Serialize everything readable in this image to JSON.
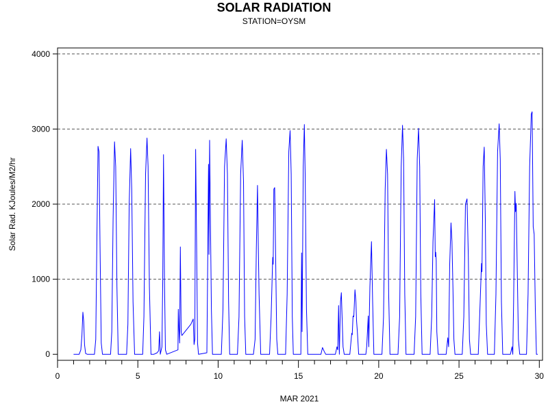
{
  "chart_data": {
    "type": "line",
    "title": "SOLAR RADIATION",
    "subtitle": "STATION=OYSM",
    "xlabel": "MAR 2021",
    "ylabel": "Solar Rad. KJoules/M2/hr",
    "xlim": [
      0,
      30.2
    ],
    "ylim": [
      -80,
      4080
    ],
    "x_ticks": [
      0,
      5,
      10,
      15,
      20,
      25,
      30
    ],
    "y_ticks": [
      0,
      1000,
      2000,
      3000,
      4000
    ],
    "grid": "horizontal dashed",
    "line_color": "#0000ff",
    "series": [
      {
        "points": [
          [
            1.0,
            0
          ],
          [
            1.35,
            0
          ],
          [
            1.45,
            60
          ],
          [
            1.52,
            250
          ],
          [
            1.58,
            560
          ],
          [
            1.63,
            440
          ],
          [
            1.68,
            130
          ],
          [
            1.75,
            10
          ],
          [
            1.85,
            0
          ],
          [
            2.3,
            0
          ],
          [
            2.38,
            200
          ],
          [
            2.45,
            1500
          ],
          [
            2.52,
            2770
          ],
          [
            2.58,
            2700
          ],
          [
            2.65,
            1400
          ],
          [
            2.72,
            150
          ],
          [
            2.8,
            0
          ],
          [
            3.3,
            0
          ],
          [
            3.38,
            300
          ],
          [
            3.46,
            1800
          ],
          [
            3.55,
            2830
          ],
          [
            3.62,
            2500
          ],
          [
            3.7,
            900
          ],
          [
            3.78,
            0
          ],
          [
            4.3,
            0
          ],
          [
            4.38,
            400
          ],
          [
            4.46,
            2000
          ],
          [
            4.55,
            2740
          ],
          [
            4.62,
            2200
          ],
          [
            4.7,
            700
          ],
          [
            4.8,
            0
          ],
          [
            5.3,
            0
          ],
          [
            5.38,
            500
          ],
          [
            5.48,
            2400
          ],
          [
            5.57,
            2880
          ],
          [
            5.64,
            2500
          ],
          [
            5.72,
            900
          ],
          [
            5.82,
            0
          ],
          [
            6.0,
            0
          ],
          [
            6.2,
            20
          ],
          [
            6.3,
            50
          ],
          [
            6.35,
            300
          ],
          [
            6.4,
            0
          ],
          [
            6.5,
            100
          ],
          [
            6.55,
            1000
          ],
          [
            6.6,
            2660
          ],
          [
            6.66,
            1000
          ],
          [
            6.72,
            60
          ],
          [
            6.8,
            0
          ],
          [
            7.5,
            60
          ],
          [
            7.52,
            600
          ],
          [
            7.56,
            350
          ],
          [
            7.6,
            150
          ],
          [
            7.65,
            1430
          ],
          [
            7.7,
            300
          ],
          [
            7.74,
            250
          ],
          [
            8.3,
            400
          ],
          [
            8.45,
            470
          ],
          [
            8.5,
            130
          ],
          [
            8.55,
            200
          ],
          [
            8.6,
            2730
          ],
          [
            8.66,
            1500
          ],
          [
            8.72,
            150
          ],
          [
            8.78,
            0
          ],
          [
            9.3,
            20
          ],
          [
            9.35,
            1200
          ],
          [
            9.4,
            2530
          ],
          [
            9.43,
            1330
          ],
          [
            9.47,
            2850
          ],
          [
            9.52,
            1800
          ],
          [
            9.58,
            600
          ],
          [
            9.65,
            0
          ],
          [
            10.2,
            0
          ],
          [
            10.3,
            600
          ],
          [
            10.4,
            2500
          ],
          [
            10.5,
            2870
          ],
          [
            10.58,
            2400
          ],
          [
            10.65,
            700
          ],
          [
            10.72,
            0
          ],
          [
            11.2,
            0
          ],
          [
            11.3,
            500
          ],
          [
            11.4,
            2400
          ],
          [
            11.5,
            2850
          ],
          [
            11.58,
            2300
          ],
          [
            11.65,
            500
          ],
          [
            11.72,
            0
          ],
          [
            12.2,
            0
          ],
          [
            12.3,
            200
          ],
          [
            12.38,
            1400
          ],
          [
            12.45,
            2250
          ],
          [
            12.5,
            1500
          ],
          [
            12.55,
            800
          ],
          [
            12.6,
            400
          ],
          [
            12.65,
            0
          ],
          [
            13.2,
            0
          ],
          [
            13.3,
            500
          ],
          [
            13.4,
            1290
          ],
          [
            13.43,
            1200
          ],
          [
            13.47,
            2200
          ],
          [
            13.52,
            2220
          ],
          [
            13.58,
            1300
          ],
          [
            13.65,
            200
          ],
          [
            13.72,
            0
          ],
          [
            14.2,
            0
          ],
          [
            14.3,
            800
          ],
          [
            14.4,
            2700
          ],
          [
            14.48,
            2980
          ],
          [
            14.55,
            2400
          ],
          [
            14.62,
            500
          ],
          [
            14.68,
            0
          ],
          [
            15.15,
            0
          ],
          [
            15.2,
            1350
          ],
          [
            15.23,
            300
          ],
          [
            15.3,
            2500
          ],
          [
            15.37,
            3060
          ],
          [
            15.42,
            2400
          ],
          [
            15.5,
            600
          ],
          [
            15.58,
            0
          ],
          [
            16.4,
            0
          ],
          [
            16.5,
            90
          ],
          [
            16.6,
            40
          ],
          [
            16.7,
            0
          ],
          [
            17.3,
            0
          ],
          [
            17.4,
            100
          ],
          [
            17.45,
            60
          ],
          [
            17.5,
            650
          ],
          [
            17.55,
            0
          ],
          [
            17.62,
            700
          ],
          [
            17.67,
            820
          ],
          [
            17.72,
            500
          ],
          [
            17.78,
            100
          ],
          [
            17.85,
            0
          ],
          [
            18.2,
            0
          ],
          [
            18.32,
            280
          ],
          [
            18.35,
            260
          ],
          [
            18.4,
            510
          ],
          [
            18.45,
            500
          ],
          [
            18.52,
            860
          ],
          [
            18.58,
            700
          ],
          [
            18.62,
            450
          ],
          [
            18.67,
            300
          ],
          [
            18.75,
            0
          ],
          [
            19.2,
            0
          ],
          [
            19.25,
            100
          ],
          [
            19.35,
            510
          ],
          [
            19.38,
            100
          ],
          [
            19.45,
            900
          ],
          [
            19.55,
            1500
          ],
          [
            19.62,
            700
          ],
          [
            19.7,
            0
          ],
          [
            20.2,
            0
          ],
          [
            20.3,
            500
          ],
          [
            20.4,
            2200
          ],
          [
            20.48,
            2730
          ],
          [
            20.55,
            2400
          ],
          [
            20.62,
            800
          ],
          [
            20.7,
            0
          ],
          [
            21.2,
            0
          ],
          [
            21.3,
            500
          ],
          [
            21.4,
            2500
          ],
          [
            21.48,
            3050
          ],
          [
            21.55,
            2600
          ],
          [
            21.62,
            800
          ],
          [
            21.7,
            0
          ],
          [
            22.2,
            0
          ],
          [
            22.3,
            500
          ],
          [
            22.4,
            2600
          ],
          [
            22.48,
            3010
          ],
          [
            22.55,
            2500
          ],
          [
            22.62,
            800
          ],
          [
            22.7,
            0
          ],
          [
            23.2,
            0
          ],
          [
            23.3,
            500
          ],
          [
            23.38,
            1500
          ],
          [
            23.48,
            2060
          ],
          [
            23.52,
            1300
          ],
          [
            23.55,
            1360
          ],
          [
            23.58,
            1250
          ],
          [
            23.62,
            300
          ],
          [
            23.7,
            0
          ],
          [
            24.2,
            0
          ],
          [
            24.3,
            220
          ],
          [
            24.35,
            100
          ],
          [
            24.42,
            1200
          ],
          [
            24.5,
            1750
          ],
          [
            24.56,
            1500
          ],
          [
            24.62,
            900
          ],
          [
            24.68,
            200
          ],
          [
            24.75,
            0
          ],
          [
            25.2,
            0
          ],
          [
            25.3,
            500
          ],
          [
            25.4,
            2000
          ],
          [
            25.5,
            2070
          ],
          [
            25.58,
            1300
          ],
          [
            25.65,
            200
          ],
          [
            25.72,
            0
          ],
          [
            26.2,
            0
          ],
          [
            26.3,
            600
          ],
          [
            26.4,
            1210
          ],
          [
            26.43,
            1100
          ],
          [
            26.5,
            2500
          ],
          [
            26.57,
            2760
          ],
          [
            26.64,
            1800
          ],
          [
            26.7,
            400
          ],
          [
            26.78,
            0
          ],
          [
            27.2,
            0
          ],
          [
            27.3,
            800
          ],
          [
            27.4,
            2700
          ],
          [
            27.5,
            3070
          ],
          [
            27.57,
            2600
          ],
          [
            27.64,
            700
          ],
          [
            27.72,
            0
          ],
          [
            28.2,
            0
          ],
          [
            28.3,
            100
          ],
          [
            28.35,
            0
          ],
          [
            28.4,
            700
          ],
          [
            28.48,
            2170
          ],
          [
            28.52,
            1900
          ],
          [
            28.56,
            2010
          ],
          [
            28.62,
            1200
          ],
          [
            28.7,
            200
          ],
          [
            28.78,
            0
          ],
          [
            29.2,
            0
          ],
          [
            29.3,
            800
          ],
          [
            29.4,
            2500
          ],
          [
            29.5,
            3200
          ],
          [
            29.55,
            3230
          ],
          [
            29.62,
            1700
          ],
          [
            29.68,
            1600
          ],
          [
            29.75,
            600
          ],
          [
            29.82,
            0
          ],
          [
            29.9,
            0
          ]
        ]
      }
    ]
  }
}
